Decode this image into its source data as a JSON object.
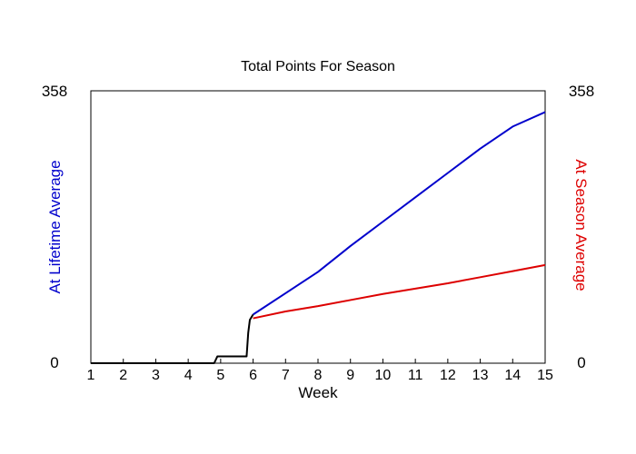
{
  "chart_data": {
    "type": "line",
    "title": "Total Points For Season",
    "xlabel": "Week",
    "ylabel_left": "At Lifetime Average",
    "ylabel_right": "At Season Average",
    "xlim": [
      1,
      15
    ],
    "ylim": [
      0,
      358
    ],
    "x_ticks": [
      "1",
      "2",
      "3",
      "4",
      "5",
      "6",
      "7",
      "8",
      "9",
      "10",
      "11",
      "12",
      "13",
      "14",
      "15"
    ],
    "y_left_ticks": [
      "0",
      "358"
    ],
    "y_right_ticks": [
      "0",
      "358"
    ],
    "grid": false,
    "legend": "none",
    "series": [
      {
        "color": "#000000",
        "points": [
          [
            1,
            0
          ],
          [
            4.8,
            0
          ],
          [
            4.9,
            9
          ],
          [
            5.8,
            9
          ],
          [
            5.85,
            40
          ],
          [
            5.9,
            57
          ],
          [
            6.0,
            64
          ]
        ]
      },
      {
        "color": "#0000cc",
        "points": [
          [
            6.0,
            64
          ],
          [
            7,
            92
          ],
          [
            8,
            120
          ],
          [
            9,
            154
          ],
          [
            10,
            186
          ],
          [
            11,
            218
          ],
          [
            12,
            250
          ],
          [
            13,
            282
          ],
          [
            14,
            311
          ],
          [
            15,
            330
          ]
        ]
      },
      {
        "color": "#dd0000",
        "points": [
          [
            6.0,
            59
          ],
          [
            7,
            68
          ],
          [
            8,
            75
          ],
          [
            9,
            83
          ],
          [
            10,
            91
          ],
          [
            11,
            98
          ],
          [
            12,
            105
          ],
          [
            13,
            113
          ],
          [
            14,
            121
          ],
          [
            15,
            129
          ]
        ]
      }
    ]
  },
  "colors": {
    "left_axis_label": "#0000cc",
    "right_axis_label": "#dd0000",
    "axes": "#000000"
  }
}
